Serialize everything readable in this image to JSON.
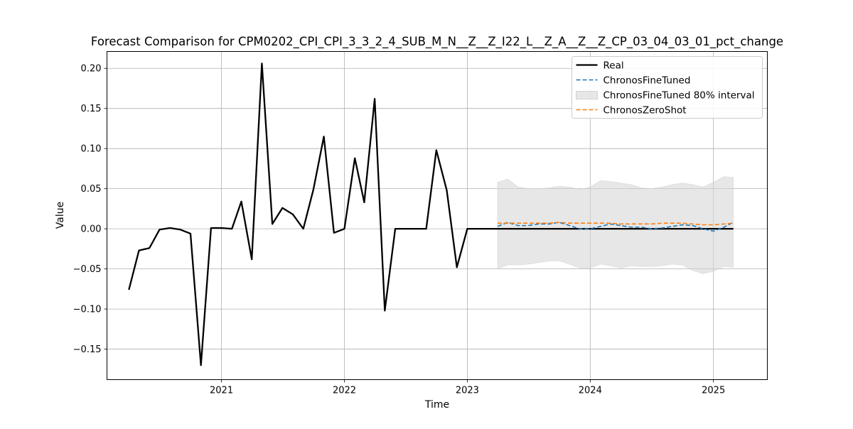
{
  "chart_data": {
    "type": "line",
    "title": "Forecast Comparison for CPM0202_CPI_CPI_3_3_2_4_SUB_M_N__Z__Z_I22_L__Z_A__Z__Z_CP_03_04_03_01_pct_change",
    "xlabel": "Time",
    "ylabel": "Value",
    "xlim": [
      "2020-01-27",
      "2025-06-10"
    ],
    "ylim": [
      -0.188,
      0.221
    ],
    "x_ticks": [
      "2021",
      "2022",
      "2023",
      "2024",
      "2025"
    ],
    "y_ticks": [
      -0.15,
      -0.1,
      -0.05,
      0.0,
      0.05,
      0.1,
      0.15,
      0.2
    ],
    "y_tick_labels": [
      "−0.15",
      "−0.10",
      "−0.05",
      "0.00",
      "0.05",
      "0.10",
      "0.15",
      "0.20"
    ],
    "grid": true,
    "legend_position": "top-right",
    "series": [
      {
        "name": "Real",
        "style": "solid",
        "color": "#000000",
        "x": [
          "2020-04",
          "2020-05",
          "2020-06",
          "2020-07",
          "2020-08",
          "2020-09",
          "2020-10",
          "2020-11",
          "2020-12",
          "2021-01",
          "2021-02",
          "2021-03",
          "2021-04",
          "2021-05",
          "2021-06",
          "2021-07",
          "2021-08",
          "2021-09",
          "2021-10",
          "2021-11",
          "2021-12",
          "2022-01",
          "2022-02",
          "2022-03",
          "2022-04",
          "2022-05",
          "2022-06",
          "2022-07",
          "2022-08",
          "2022-09",
          "2022-10",
          "2022-11",
          "2022-12",
          "2023-01",
          "2023-02",
          "2023-03",
          "2023-04",
          "2023-05",
          "2023-06",
          "2023-07",
          "2023-08",
          "2023-09",
          "2023-10",
          "2023-11",
          "2023-12",
          "2024-01",
          "2024-02",
          "2024-03",
          "2024-04",
          "2024-05",
          "2024-06",
          "2024-07",
          "2024-08",
          "2024-09",
          "2024-10",
          "2024-11",
          "2024-12",
          "2025-01",
          "2025-02",
          "2025-03"
        ],
        "values": [
          -0.076,
          -0.027,
          -0.024,
          -0.001,
          0.001,
          -0.001,
          -0.006,
          -0.17,
          0.001,
          0.001,
          0.0,
          0.034,
          -0.038,
          0.206,
          0.006,
          0.026,
          0.018,
          0.0,
          0.049,
          0.115,
          -0.005,
          0.0,
          0.088,
          0.033,
          0.162,
          -0.102,
          0.0,
          0.0,
          0.0,
          0.0,
          0.098,
          0.048,
          -0.048,
          0.0,
          0.0,
          0.0,
          0.0,
          0.0,
          0.0,
          0.0,
          0.0,
          0.0,
          0.0,
          0.0,
          0.0,
          0.0,
          0.0,
          0.0,
          0.0,
          0.0,
          0.0,
          0.0,
          0.0,
          0.0,
          0.0,
          0.0,
          0.0,
          0.0,
          0.0,
          0.0
        ]
      },
      {
        "name": "ChronosFineTuned",
        "style": "dashed",
        "color": "#1f77b4",
        "x": [
          "2023-04",
          "2023-05",
          "2023-06",
          "2023-07",
          "2023-08",
          "2023-09",
          "2023-10",
          "2023-11",
          "2023-12",
          "2024-01",
          "2024-02",
          "2024-03",
          "2024-04",
          "2024-05",
          "2024-06",
          "2024-07",
          "2024-08",
          "2024-09",
          "2024-10",
          "2024-11",
          "2024-12",
          "2025-01",
          "2025-02",
          "2025-03"
        ],
        "values": [
          0.003,
          0.008,
          0.004,
          0.004,
          0.006,
          0.006,
          0.008,
          0.004,
          0.0,
          0.0,
          0.003,
          0.006,
          0.004,
          0.002,
          0.002,
          0.0,
          0.001,
          0.003,
          0.005,
          0.004,
          0.0,
          -0.003,
          0.002,
          0.008
        ]
      },
      {
        "name": "ChronosFineTuned 80% interval",
        "style": "band",
        "color": "#d3d3d3",
        "x": [
          "2023-04",
          "2023-05",
          "2023-06",
          "2023-07",
          "2023-08",
          "2023-09",
          "2023-10",
          "2023-11",
          "2023-12",
          "2024-01",
          "2024-02",
          "2024-03",
          "2024-04",
          "2024-05",
          "2024-06",
          "2024-07",
          "2024-08",
          "2024-09",
          "2024-10",
          "2024-11",
          "2024-12",
          "2025-01",
          "2025-02",
          "2025-03"
        ],
        "upper": [
          0.058,
          0.062,
          0.052,
          0.05,
          0.05,
          0.051,
          0.053,
          0.052,
          0.049,
          0.052,
          0.06,
          0.059,
          0.057,
          0.055,
          0.051,
          0.05,
          0.052,
          0.055,
          0.057,
          0.055,
          0.052,
          0.058,
          0.065,
          0.064
        ],
        "lower": [
          -0.05,
          -0.045,
          -0.045,
          -0.044,
          -0.042,
          -0.04,
          -0.04,
          -0.044,
          -0.049,
          -0.049,
          -0.044,
          -0.046,
          -0.049,
          -0.046,
          -0.047,
          -0.047,
          -0.046,
          -0.044,
          -0.045,
          -0.052,
          -0.056,
          -0.053,
          -0.047,
          -0.048
        ]
      },
      {
        "name": "ChronosZeroShot",
        "style": "dashed",
        "color": "#ff7f0e",
        "x": [
          "2023-04",
          "2023-05",
          "2023-06",
          "2023-07",
          "2023-08",
          "2023-09",
          "2023-10",
          "2023-11",
          "2023-12",
          "2024-01",
          "2024-02",
          "2024-03",
          "2024-04",
          "2024-05",
          "2024-06",
          "2024-07",
          "2024-08",
          "2024-09",
          "2024-10",
          "2024-11",
          "2024-12",
          "2025-01",
          "2025-02",
          "2025-03"
        ],
        "values": [
          0.007,
          0.007,
          0.007,
          0.007,
          0.007,
          0.007,
          0.008,
          0.007,
          0.007,
          0.007,
          0.007,
          0.007,
          0.006,
          0.006,
          0.006,
          0.006,
          0.007,
          0.007,
          0.007,
          0.006,
          0.005,
          0.005,
          0.006,
          0.007
        ]
      }
    ]
  }
}
